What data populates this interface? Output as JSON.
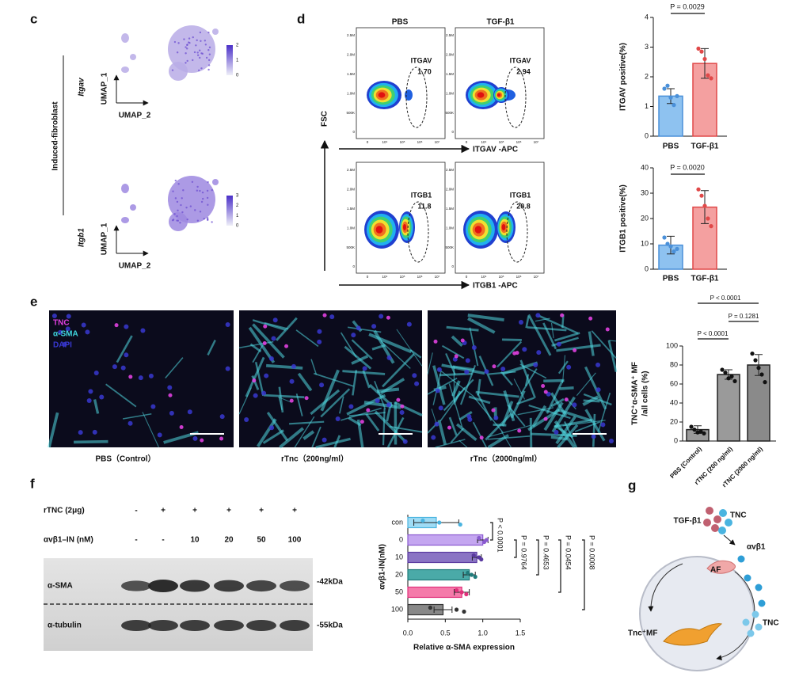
{
  "panels": {
    "c": {
      "letter": "c",
      "group": "Induced-fibroblast",
      "genes": [
        "Itgav",
        "Itgb1"
      ],
      "umap_x": "UMAP_2",
      "umap_y": "UMAP_1",
      "colorbar_ticks": [
        [
          2,
          1,
          0
        ],
        [
          3,
          2,
          1,
          0
        ]
      ]
    },
    "d": {
      "letter": "d",
      "conditions": [
        "PBS",
        "TGF-β1"
      ],
      "y_axis": "FSC",
      "x_axes": [
        "ITGAV -APC",
        "ITGB1 -APC"
      ],
      "gates": [
        {
          "marker": "ITGAV",
          "values": [
            "1.70",
            "2.94"
          ]
        },
        {
          "marker": "ITGB1",
          "values": [
            "11.8",
            "20.8"
          ]
        }
      ],
      "flow_yticks": [
        "2.5M",
        "2.0M",
        "1.5M",
        "1.0M",
        "500K",
        "0"
      ],
      "flow_xticks": [
        "0",
        "10⁴",
        "10⁵",
        "10⁶",
        "10⁷"
      ]
    },
    "e": {
      "letter": "e",
      "stains": [
        "TNC",
        "α-SMA",
        "DAPI"
      ],
      "captions": [
        "PBS（Control）",
        "rTnc（200ng/ml）",
        "rTnc（2000ng/ml）"
      ]
    },
    "f": {
      "letter": "f",
      "rows": [
        {
          "label": "rTNC (2μg)",
          "lanes": [
            "-",
            "+",
            "+",
            "+",
            "+",
            "+"
          ]
        },
        {
          "label": "αvβ1–IN (nM)",
          "lanes": [
            "-",
            "-",
            "10",
            "20",
            "50",
            "100"
          ]
        }
      ],
      "proteins": [
        {
          "name": "α-SMA",
          "size": "-42kDa"
        },
        {
          "name": "α-tubulin",
          "size": "-55kDa"
        }
      ]
    },
    "g": {
      "letter": "g",
      "labels": {
        "tgf": "TGF-β1",
        "tnc": "TNC",
        "receptor": "αvβ1",
        "af": "AF",
        "tnc_cells": "TNC",
        "mf": "Tnc⁺MF"
      }
    }
  },
  "chart_data": [
    {
      "type": "bar",
      "orientation": "vertical",
      "categories": [
        "PBS",
        "TGF-β1"
      ],
      "values": [
        1.35,
        2.45
      ],
      "errors": [
        0.25,
        0.5
      ],
      "points": [
        [
          1.6,
          1.7,
          1.3,
          1.05,
          1.35
        ],
        [
          2.95,
          2.85,
          2.6,
          2.05,
          1.95
        ]
      ],
      "colors": [
        "#8ec2f0",
        "#f4a0a0"
      ],
      "edge_colors": [
        "#4a90d9",
        "#e04848"
      ],
      "ylim": [
        0,
        4
      ],
      "yticks": [
        0,
        1,
        2,
        3,
        4
      ],
      "ylabel": "ITGAV positive(%)",
      "annotations": [
        "P = 0.0029"
      ]
    },
    {
      "type": "bar",
      "orientation": "vertical",
      "categories": [
        "PBS",
        "TGF-β1"
      ],
      "values": [
        9.5,
        24.5
      ],
      "errors": [
        3.5,
        6.5
      ],
      "points": [
        [
          12.5,
          10,
          9,
          7,
          8
        ],
        [
          31.5,
          29,
          25,
          20,
          17
        ]
      ],
      "colors": [
        "#8ec2f0",
        "#f4a0a0"
      ],
      "edge_colors": [
        "#4a90d9",
        "#e04848"
      ],
      "ylim": [
        0,
        40
      ],
      "yticks": [
        0,
        10,
        20,
        30,
        40
      ],
      "ylabel": "ITGB1 positive(%)",
      "annotations": [
        "P = 0.0020"
      ]
    },
    {
      "type": "bar",
      "orientation": "vertical",
      "categories": [
        "PBS (Control)",
        "rTNC (200 ng/ml)",
        "rTNC (2000 ng/ml)"
      ],
      "values": [
        12,
        70,
        80
      ],
      "errors": [
        4,
        5,
        11
      ],
      "points": [
        [
          15,
          12,
          9,
          10,
          8
        ],
        [
          75,
          72,
          66,
          68,
          63
        ],
        [
          92,
          85,
          77,
          70,
          62
        ]
      ],
      "colors": [
        "#9a9a9a",
        "#9a9a9a",
        "#8a8a8a"
      ],
      "edge_colors": [
        "#222222",
        "#222222",
        "#222222"
      ],
      "ylim": [
        0,
        100
      ],
      "yticks": [
        0,
        20,
        40,
        60,
        80,
        100
      ],
      "ylabel": [
        "TNC⁺α-SMA⁺ MF",
        "/all cells (%)"
      ],
      "annotations": [
        "P < 0.0001",
        "P < 0.0001",
        "P = 0.1281"
      ]
    },
    {
      "type": "bar",
      "orientation": "horizontal",
      "categories": [
        "con",
        "0",
        "10",
        "20",
        "50",
        "100"
      ],
      "values": [
        0.38,
        1.0,
        0.92,
        0.82,
        0.72,
        0.47
      ],
      "errors": [
        0.3,
        0.07,
        0.06,
        0.08,
        0.1,
        0.12
      ],
      "points": [
        [
          0.2,
          0.42,
          0.7
        ],
        [
          0.95,
          1.05,
          1.02
        ],
        [
          0.88,
          0.95,
          0.98
        ],
        [
          0.8,
          0.85,
          0.9
        ],
        [
          0.65,
          0.72,
          0.78
        ],
        [
          0.3,
          0.65,
          0.75
        ]
      ],
      "colors": [
        "#9fdcf5",
        "#c4a6f0",
        "#8a74c4",
        "#4aaaa8",
        "#f57aaa",
        "#888888"
      ],
      "edge_colors": [
        "#4ab4e0",
        "#8a5ad0",
        "#5a3aa0",
        "#1f7a7a",
        "#e0307a",
        "#333333"
      ],
      "xlim": [
        0,
        1.5
      ],
      "xticks": [
        {
          "value": 0,
          "label": "0.0"
        },
        0.5,
        {
          "value": 1,
          "label": "1.0"
        },
        1.5
      ],
      "xlabel": "Relative α-SMA expression",
      "ylabel": "αvβ1-IN(nM)",
      "annotations": [
        "P < 0.0001",
        "P = 0.9764",
        "P = 0.4653",
        "P = 0.0454",
        "P = 0.0008"
      ]
    }
  ]
}
